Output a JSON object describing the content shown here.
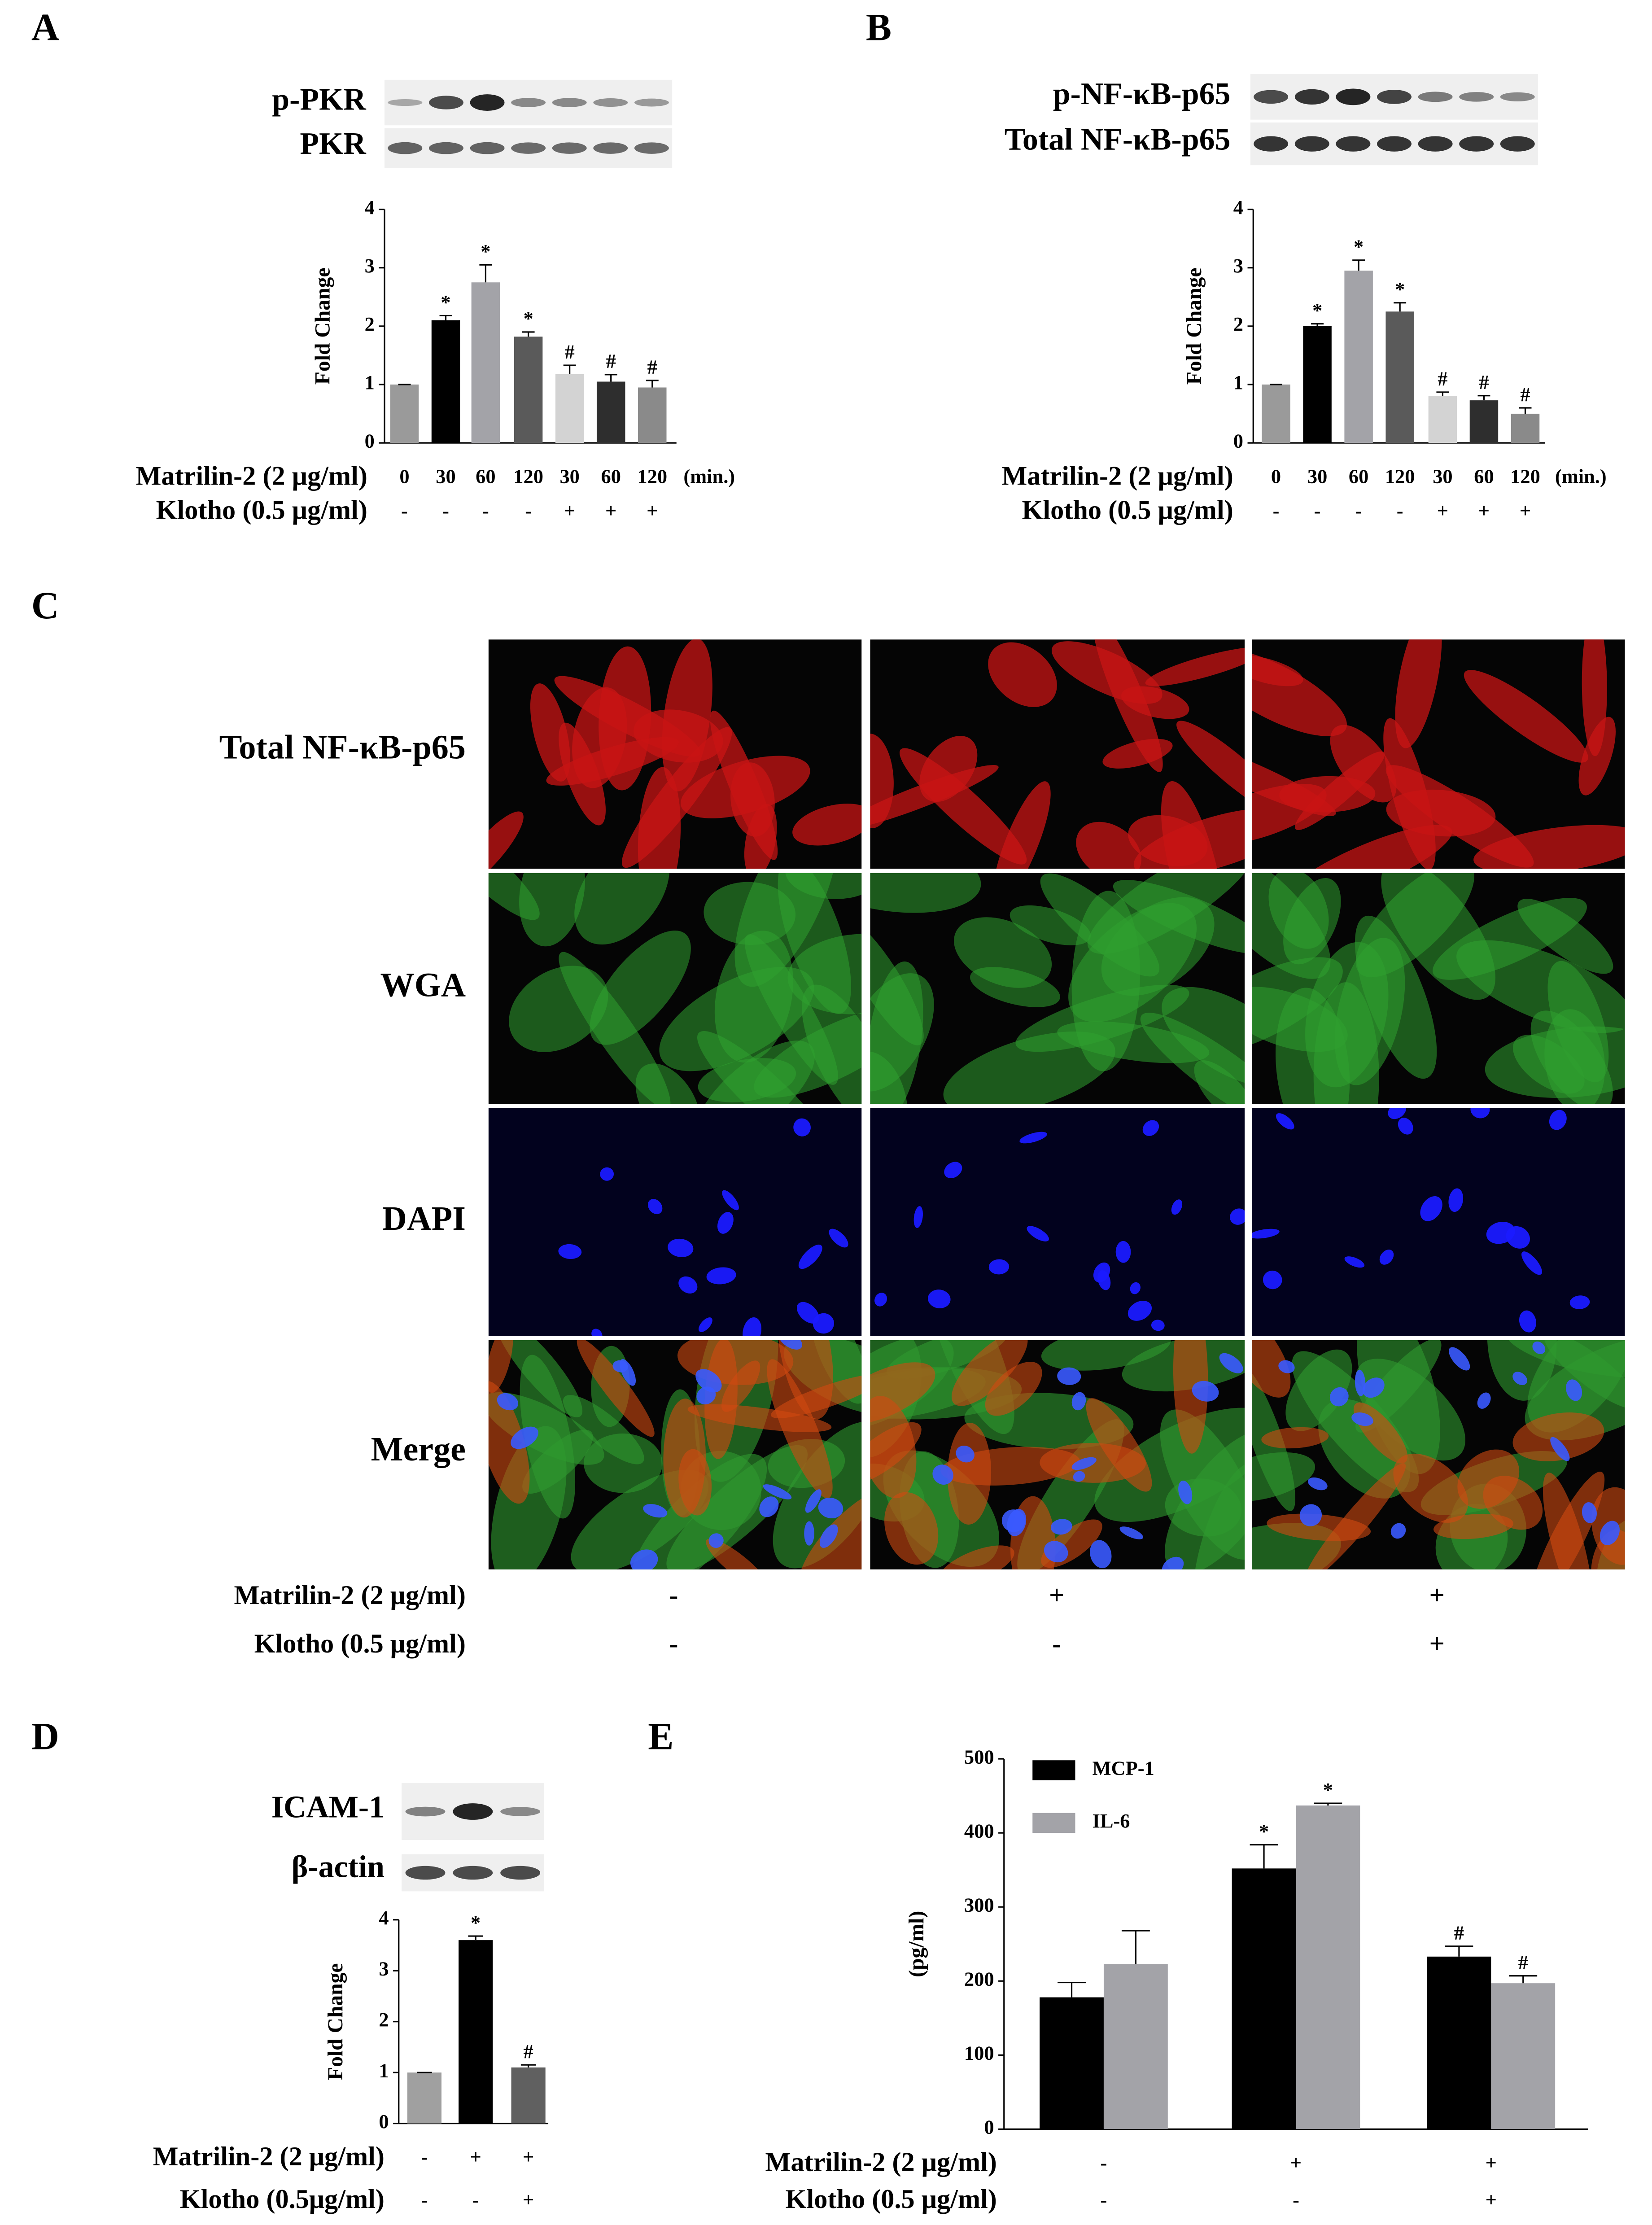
{
  "panel_labels": [
    "A",
    "B",
    "C",
    "D",
    "E"
  ],
  "blots": {
    "A": [
      "p-PKR",
      "PKR"
    ],
    "B": [
      "p-NF-κB-p65",
      "Total NF-κB-p65"
    ],
    "D": [
      "ICAM-1",
      "β-actin"
    ]
  },
  "panel_c": {
    "rows": [
      "Total NF-κB-p65",
      "WGA",
      "DAPI",
      "Merge"
    ],
    "treatment_names": [
      "Matrilin-2 (2 μg/ml)",
      "Klotho (0.5 μg/ml)"
    ],
    "signs": [
      [
        "-",
        "+",
        "+"
      ],
      [
        "-",
        "-",
        "+"
      ]
    ]
  },
  "chart_data": [
    {
      "type": "bar",
      "ylabel": "Fold Change",
      "ylim": [
        0,
        4
      ],
      "yticks": [
        0,
        1,
        2,
        3,
        4
      ],
      "categories": [
        "0",
        "30",
        "60",
        "120",
        "30",
        "60",
        "120"
      ],
      "x_unit": "(min.)",
      "values": [
        1,
        2.1,
        2.75,
        1.82,
        1.18,
        1.05,
        0.95
      ],
      "errors": [
        0,
        0.08,
        0.3,
        0.08,
        0.15,
        0.12,
        0.12
      ],
      "colors": [
        "#9a9a9a",
        "#000000",
        "#a3a3a8",
        "#5a5a5a",
        "#d3d3d3",
        "#2e2e2e",
        "#8a8a8a"
      ],
      "markers": [
        null,
        "*",
        "*",
        "*",
        "#",
        "#",
        "#"
      ],
      "treatment_names": [
        "Matrilin-2 (2 μg/ml)",
        "Klotho (0.5 μg/ml)"
      ],
      "signs": [
        [
          "-",
          "-",
          "-",
          "-",
          "+",
          "+",
          "+"
        ]
      ]
    },
    {
      "type": "bar",
      "ylabel": "Fold Change",
      "ylim": [
        0,
        4
      ],
      "yticks": [
        0,
        1,
        2,
        3,
        4
      ],
      "categories": [
        "0",
        "30",
        "60",
        "120",
        "30",
        "60",
        "120"
      ],
      "x_unit": "(min.)",
      "values": [
        1,
        2.0,
        2.95,
        2.25,
        0.8,
        0.73,
        0.5
      ],
      "errors": [
        0,
        0.04,
        0.18,
        0.15,
        0.07,
        0.08,
        0.1
      ],
      "colors": [
        "#9a9a9a",
        "#000000",
        "#a3a3a8",
        "#5a5a5a",
        "#d3d3d3",
        "#2e2e2e",
        "#8a8a8a"
      ],
      "markers": [
        null,
        "*",
        "*",
        "*",
        "#",
        "#",
        "#"
      ],
      "treatment_names": [
        "Matrilin-2 (2 μg/ml)",
        "Klotho (0.5 μg/ml)"
      ],
      "signs": [
        [
          "-",
          "-",
          "-",
          "-",
          "+",
          "+",
          "+"
        ]
      ]
    },
    {
      "type": "bar",
      "ylabel": "Fold Change",
      "ylim": [
        0,
        4
      ],
      "yticks": [
        0,
        1,
        2,
        3,
        4
      ],
      "values": [
        1,
        3.6,
        1.1
      ],
      "errors": [
        0,
        0.08,
        0.05
      ],
      "colors": [
        "#a0a0a0",
        "#000000",
        "#606060"
      ],
      "markers": [
        null,
        "*",
        "#"
      ],
      "treatment_names": [
        "Matrilin-2 (2 μg/ml)",
        "Klotho (0.5μg/ml)"
      ],
      "signs": [
        [
          "-",
          "+",
          "+"
        ],
        [
          "-",
          "-",
          "+"
        ]
      ]
    },
    {
      "type": "grouped_bar",
      "ylabel": "(pg/ml)",
      "ylim": [
        0,
        500
      ],
      "yticks": [
        0,
        100,
        200,
        300,
        400,
        500
      ],
      "legend": "top-left",
      "series": [
        {
          "name": "MCP-1",
          "color": "#000000",
          "values": [
            178,
            352,
            233
          ],
          "errors": [
            20,
            32,
            14
          ],
          "markers": [
            null,
            "*",
            "#"
          ]
        },
        {
          "name": "IL-6",
          "color": "#a3a3a8",
          "values": [
            223,
            437,
            197
          ],
          "errors": [
            45,
            3,
            10
          ],
          "markers": [
            null,
            "*",
            "#"
          ]
        }
      ],
      "treatment_names": [
        "Matrilin-2 (2 μg/ml)",
        "Klotho (0.5 μg/ml)"
      ],
      "signs": [
        [
          "-",
          "+",
          "+"
        ],
        [
          "-",
          "-",
          "+"
        ]
      ]
    }
  ]
}
